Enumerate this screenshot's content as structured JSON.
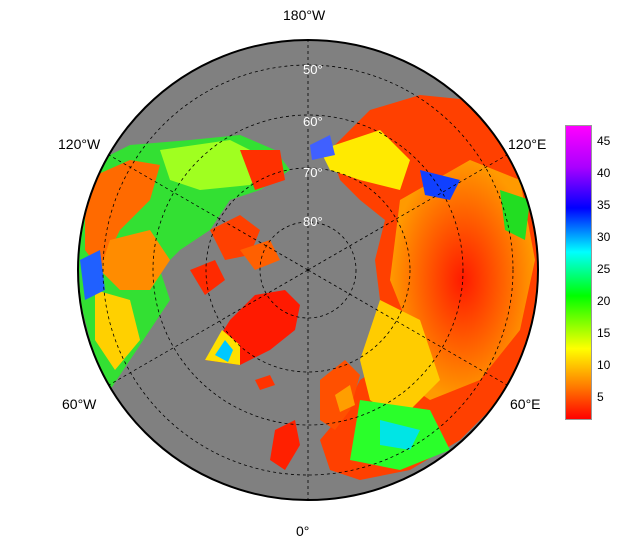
{
  "map": {
    "projection": "north polar stereographic",
    "ocean_color": "#808080",
    "longitude_labels": {
      "top": "180°W",
      "upper_left": "120°W",
      "upper_right": "120°E",
      "lower_left": "60°W",
      "lower_right": "60°E",
      "bottom": "0°"
    },
    "latitude_labels": [
      "50°",
      "60°",
      "70°",
      "80°"
    ]
  },
  "colorbar": {
    "ticks": [
      "45",
      "40",
      "35",
      "30",
      "25",
      "20",
      "15",
      "10",
      "5"
    ],
    "range": [
      1,
      47
    ],
    "colors": [
      "#ff0000",
      "#ff7a00",
      "#ffff00",
      "#00ff00",
      "#00ffff",
      "#0000ff",
      "#aa00ff",
      "#ff00ff"
    ]
  }
}
